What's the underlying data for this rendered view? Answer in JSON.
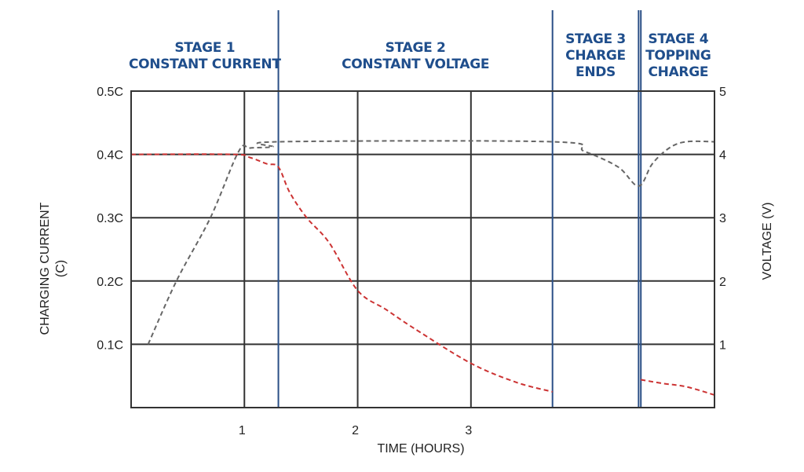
{
  "chart_data": {
    "type": "line",
    "title": "",
    "xlabel": "TIME (HOURS)",
    "ylabel": "CHARGING CURRENT\n(C)",
    "y2label": "VOLTAGE (V)",
    "xlim": [
      0,
      5.15
    ],
    "ylim": [
      0,
      0.5
    ],
    "y2lim": [
      0,
      5
    ],
    "x_ticks": [
      {
        "value": 1,
        "label": "1"
      },
      {
        "value": 2,
        "label": "2"
      },
      {
        "value": 3,
        "label": "3"
      }
    ],
    "x_gridlines": [
      1,
      2,
      3
    ],
    "y_ticks": [
      {
        "value": 0.1,
        "label": "0.1C"
      },
      {
        "value": 0.2,
        "label": "0.2C"
      },
      {
        "value": 0.3,
        "label": "0.3C"
      },
      {
        "value": 0.4,
        "label": "0.4C"
      },
      {
        "value": 0.5,
        "label": "0.5C"
      }
    ],
    "y2_ticks": [
      {
        "value": 1,
        "label": "1"
      },
      {
        "value": 2,
        "label": "2"
      },
      {
        "value": 3,
        "label": "3"
      },
      {
        "value": 4,
        "label": "4"
      },
      {
        "value": 5,
        "label": "5"
      }
    ],
    "grid": true,
    "stage_boundaries": [
      1.3,
      3.72,
      4.48,
      4.5
    ],
    "stages": [
      {
        "lines": [
          "STAGE 1",
          "CONSTANT CURRENT"
        ],
        "x_center": 0.65
      },
      {
        "lines": [
          "STAGE 2",
          "CONSTANT VOLTAGE"
        ],
        "x_center": 2.51
      },
      {
        "lines": [
          "STAGE 3",
          "CHARGE",
          "ENDS"
        ],
        "x_center": 4.1
      },
      {
        "lines": [
          "STAGE 4",
          "TOPPING",
          "CHARGE"
        ],
        "x_center": 4.83
      }
    ],
    "series": [
      {
        "axis": "left",
        "color": "#cc3333",
        "points": [
          [
            0,
            0.4
          ],
          [
            0.9,
            0.4
          ],
          [
            1.05,
            0.395
          ],
          [
            1.2,
            0.385
          ],
          [
            1.3,
            0.38
          ],
          [
            1.4,
            0.34
          ],
          [
            1.55,
            0.3
          ],
          [
            1.75,
            0.26
          ],
          [
            2.0,
            0.185
          ],
          [
            2.25,
            0.155
          ],
          [
            2.5,
            0.125
          ],
          [
            3.0,
            0.07
          ],
          [
            3.4,
            0.04
          ],
          [
            3.72,
            0.025
          ]
        ]
      },
      {
        "axis": "left",
        "color": "#cc3333",
        "points": [
          [
            4.5,
            0.044
          ],
          [
            4.7,
            0.038
          ],
          [
            4.9,
            0.033
          ],
          [
            5.15,
            0.02
          ]
        ]
      },
      {
        "axis": "right",
        "color": "#666666",
        "points": [
          [
            0.15,
            1.0
          ],
          [
            0.4,
            2.0
          ],
          [
            0.7,
            3.0
          ],
          [
            0.95,
            4.05
          ],
          [
            1.05,
            4.1
          ],
          [
            1.25,
            4.12
          ],
          [
            1.3,
            4.2
          ],
          [
            3.72,
            4.2
          ],
          [
            4.0,
            4.05
          ],
          [
            4.3,
            3.8
          ],
          [
            4.48,
            3.5
          ],
          [
            4.6,
            3.85
          ],
          [
            4.75,
            4.1
          ],
          [
            4.9,
            4.2
          ],
          [
            5.15,
            4.2
          ]
        ]
      }
    ]
  }
}
